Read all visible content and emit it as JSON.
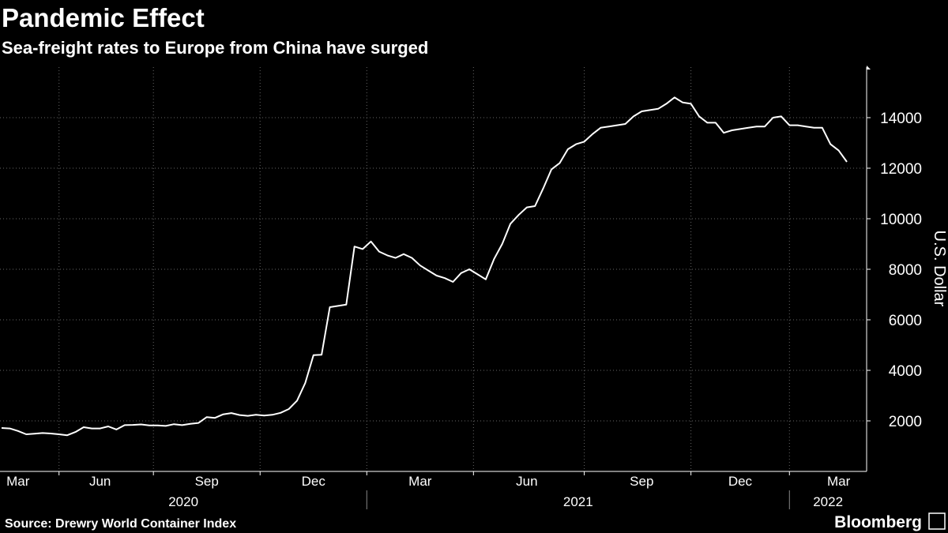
{
  "chart_data": {
    "type": "line",
    "title": "Pandemic Effect",
    "subtitle": "Sea-freight rates to Europe from China have surged",
    "y_label": "U.S. Dollar",
    "source": "Source: Drewry World Container Index",
    "brand": "Bloomberg",
    "categories": [
      null,
      null,
      "Mar",
      null,
      null,
      null,
      null,
      null,
      null,
      null,
      null,
      null,
      "Jun",
      null,
      null,
      null,
      null,
      null,
      null,
      null,
      null,
      null,
      null,
      null,
      null,
      "Sep",
      null,
      null,
      null,
      null,
      null,
      null,
      null,
      null,
      null,
      null,
      null,
      null,
      "Dec",
      null,
      null,
      null,
      null,
      null,
      null,
      null,
      null,
      null,
      null,
      null,
      null,
      "Mar",
      null,
      null,
      null,
      null,
      null,
      null,
      null,
      null,
      null,
      null,
      null,
      null,
      "Jun",
      null,
      null,
      null,
      null,
      null,
      null,
      null,
      null,
      null,
      null,
      null,
      null,
      null,
      "Sep",
      null,
      null,
      null,
      null,
      null,
      null,
      null,
      null,
      null,
      null,
      null,
      "Dec",
      null,
      null,
      null,
      null,
      null,
      null,
      null,
      null,
      null,
      null,
      null,
      "Mar",
      null
    ],
    "year_labels": [
      "2020",
      "2021",
      "2022"
    ],
    "series": [
      {
        "name": "Drewry World Container Index",
        "color": "#ffffff",
        "values": [
          1720,
          1700,
          1600,
          1470,
          1490,
          1520,
          1500,
          1470,
          1430,
          1560,
          1750,
          1700,
          1700,
          1780,
          1660,
          1830,
          1840,
          1860,
          1820,
          1820,
          1800,
          1870,
          1830,
          1880,
          1920,
          2150,
          2120,
          2260,
          2310,
          2230,
          2200,
          2240,
          2210,
          2240,
          2320,
          2470,
          2800,
          3500,
          4600,
          4620,
          6500,
          6550,
          6600,
          8900,
          8800,
          9100,
          8700,
          8550,
          8450,
          8600,
          8450,
          8150,
          7950,
          7750,
          7650,
          7500,
          7850,
          8000,
          7800,
          7600,
          8400,
          9000,
          9800,
          10150,
          10450,
          10500,
          11200,
          11950,
          12200,
          12750,
          12950,
          13050,
          13350,
          13600,
          13650,
          13700,
          13750,
          14050,
          14250,
          14300,
          14350,
          14550,
          14800,
          14600,
          14550,
          14050,
          13800,
          13800,
          13400,
          13500,
          13550,
          13600,
          13650,
          13650,
          14000,
          14050,
          13700,
          13700,
          13650,
          13600,
          13600,
          12950,
          12700,
          12250
        ]
      }
    ],
    "ylim": [
      0,
      16000
    ],
    "yticks": [
      2000,
      4000,
      6000,
      8000,
      10000,
      12000,
      14000
    ],
    "grid": true
  }
}
